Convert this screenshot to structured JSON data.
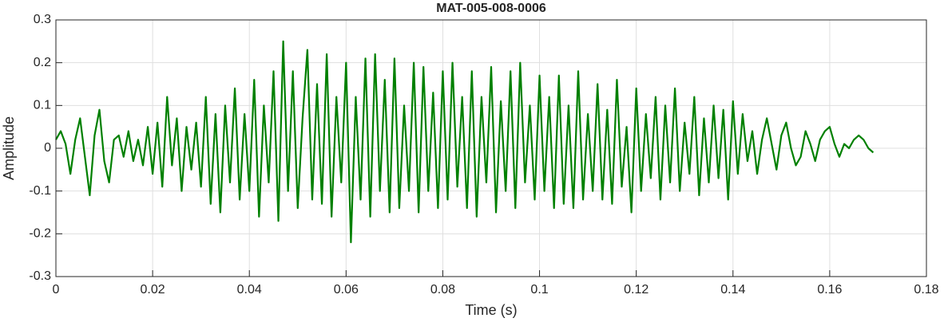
{
  "chart_data": {
    "type": "line",
    "title": "MAT-005-008-0006",
    "x_label": "Time (s)",
    "y_label": "Amplitude",
    "x": [
      0,
      0.001,
      0.002,
      0.003,
      0.004,
      0.005,
      0.006,
      0.007,
      0.008,
      0.009,
      0.01,
      0.011,
      0.012,
      0.013,
      0.014,
      0.015,
      0.016,
      0.017,
      0.018,
      0.019,
      0.02,
      0.021,
      0.022,
      0.023,
      0.024,
      0.025,
      0.026,
      0.027,
      0.028,
      0.029,
      0.03,
      0.031,
      0.032,
      0.033,
      0.034,
      0.035,
      0.036,
      0.037,
      0.038,
      0.039,
      0.04,
      0.041,
      0.042,
      0.043,
      0.044,
      0.045,
      0.046,
      0.047,
      0.048,
      0.049,
      0.05,
      0.051,
      0.052,
      0.053,
      0.054,
      0.055,
      0.056,
      0.057,
      0.058,
      0.059,
      0.06,
      0.061,
      0.062,
      0.063,
      0.064,
      0.065,
      0.066,
      0.067,
      0.068,
      0.069,
      0.07,
      0.071,
      0.072,
      0.073,
      0.074,
      0.075,
      0.076,
      0.077,
      0.078,
      0.079,
      0.08,
      0.081,
      0.082,
      0.083,
      0.084,
      0.085,
      0.086,
      0.087,
      0.088,
      0.089,
      0.09,
      0.091,
      0.092,
      0.093,
      0.094,
      0.095,
      0.096,
      0.097,
      0.098,
      0.099,
      0.1,
      0.101,
      0.102,
      0.103,
      0.104,
      0.105,
      0.106,
      0.107,
      0.108,
      0.109,
      0.11,
      0.111,
      0.112,
      0.113,
      0.114,
      0.115,
      0.116,
      0.117,
      0.118,
      0.119,
      0.12,
      0.121,
      0.122,
      0.123,
      0.124,
      0.125,
      0.126,
      0.127,
      0.128,
      0.129,
      0.13,
      0.131,
      0.132,
      0.133,
      0.134,
      0.135,
      0.136,
      0.137,
      0.138,
      0.139,
      0.14,
      0.141,
      0.142,
      0.143,
      0.144,
      0.145,
      0.146,
      0.147,
      0.148,
      0.149,
      0.15,
      0.151,
      0.152,
      0.153,
      0.154,
      0.155,
      0.156,
      0.157,
      0.158,
      0.159,
      0.16,
      0.161,
      0.162,
      0.163,
      0.164,
      0.165,
      0.166,
      0.167,
      0.168,
      0.169
    ],
    "series": [
      {
        "color": "#008000",
        "values": [
          0.02,
          0.04,
          0.01,
          -0.06,
          0.02,
          0.07,
          -0.02,
          -0.11,
          0.03,
          0.09,
          -0.03,
          -0.08,
          0.02,
          0.03,
          -0.02,
          0.04,
          -0.03,
          0.02,
          -0.04,
          0.05,
          -0.06,
          0.06,
          -0.09,
          0.12,
          -0.04,
          0.07,
          -0.1,
          0.05,
          -0.05,
          0.06,
          -0.09,
          0.12,
          -0.13,
          0.08,
          -0.15,
          0.1,
          -0.08,
          0.14,
          -0.12,
          0.08,
          -0.1,
          0.16,
          -0.16,
          0.1,
          -0.08,
          0.18,
          -0.17,
          0.25,
          -0.1,
          0.18,
          -0.14,
          0.07,
          0.23,
          -0.12,
          0.15,
          -0.13,
          0.22,
          -0.16,
          0.12,
          -0.08,
          0.2,
          -0.22,
          0.12,
          -0.12,
          0.21,
          -0.16,
          0.22,
          -0.1,
          0.16,
          -0.15,
          0.21,
          -0.14,
          0.1,
          -0.1,
          0.2,
          -0.15,
          0.19,
          -0.1,
          0.13,
          -0.14,
          0.18,
          -0.12,
          0.2,
          -0.09,
          0.12,
          -0.14,
          0.18,
          -0.16,
          0.12,
          -0.08,
          0.19,
          -0.15,
          0.11,
          -0.1,
          0.18,
          -0.14,
          0.2,
          -0.08,
          0.1,
          -0.12,
          0.17,
          -0.1,
          0.12,
          -0.14,
          0.17,
          -0.13,
          0.1,
          -0.14,
          0.18,
          -0.12,
          0.08,
          -0.1,
          0.15,
          -0.12,
          0.09,
          -0.13,
          0.16,
          -0.09,
          0.05,
          -0.15,
          0.14,
          -0.1,
          0.08,
          -0.07,
          0.12,
          -0.12,
          0.1,
          -0.08,
          0.14,
          -0.1,
          0.06,
          -0.06,
          0.12,
          -0.11,
          0.07,
          -0.08,
          0.1,
          -0.07,
          0.09,
          -0.12,
          0.11,
          -0.06,
          0.08,
          -0.03,
          0.04,
          -0.06,
          0.02,
          0.07,
          0.01,
          -0.05,
          0.03,
          0.06,
          0,
          -0.04,
          -0.02,
          0.04,
          0.01,
          -0.03,
          0.02,
          0.04,
          0.05,
          0.01,
          -0.02,
          0.01,
          0,
          0.02,
          0.03,
          0.02,
          0,
          -0.01
        ]
      }
    ],
    "xlim": [
      0,
      0.18
    ],
    "xticks": [
      0,
      0.02,
      0.04,
      0.06,
      0.08,
      0.1,
      0.12,
      0.14,
      0.16,
      0.18
    ],
    "ylim": [
      -0.3,
      0.3
    ],
    "yticks": [
      -0.3,
      -0.2,
      -0.1,
      0,
      0.1,
      0.2,
      0.3
    ],
    "grid": true
  }
}
